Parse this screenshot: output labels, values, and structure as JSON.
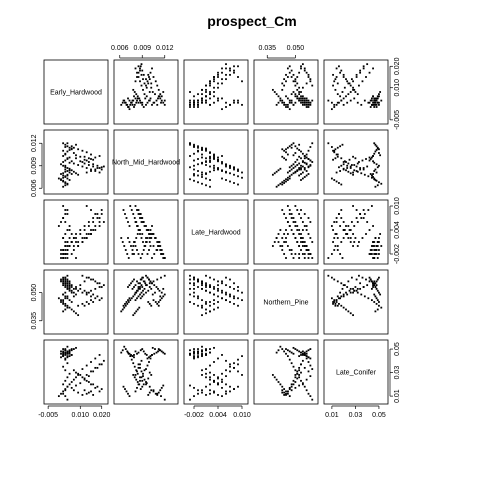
{
  "chart_data": {
    "type": "scatter",
    "title": "prospect_Cm",
    "variables": [
      {
        "name": "Early_Hardwood",
        "range": [
          -0.006,
          0.022
        ],
        "ticks": [
          "-0.005",
          "0.010",
          "0.020"
        ],
        "tick_values": [
          -0.005,
          0.01,
          0.02
        ]
      },
      {
        "name": "North_Mid_Hardwood",
        "range": [
          0.0055,
          0.0135
        ],
        "ticks": [
          "0.006",
          "0.009",
          "0.012"
        ],
        "tick_values": [
          0.006,
          0.009,
          0.012
        ]
      },
      {
        "name": "Late_Hardwood",
        "range": [
          -0.004,
          0.011
        ],
        "ticks": [
          "-0.002",
          "0.004",
          "0.010"
        ],
        "tick_values": [
          -0.002,
          0.004,
          0.01
        ]
      },
      {
        "name": "Northern_Pine",
        "range": [
          0.029,
          0.061
        ],
        "ticks": [
          "0.035",
          "0.050"
        ],
        "tick_values": [
          0.035,
          0.05
        ]
      },
      {
        "name": "Late_Conifer",
        "range": [
          0.005,
          0.056
        ],
        "ticks": [
          "0.01",
          "0.03",
          "0.05"
        ],
        "tick_values": [
          0.01,
          0.03,
          0.05
        ]
      }
    ],
    "top_axis_panels": [
      1,
      3
    ],
    "bottom_axis_panels": [
      0,
      2,
      4
    ],
    "left_axis_panels": [
      1,
      3
    ],
    "right_axis_panels": [
      0,
      2,
      4
    ],
    "points": [
      [
        0.004,
        0.012,
        -0.003,
        0.059,
        0.007
      ],
      [
        0.003,
        0.0115,
        -0.002,
        0.058,
        0.01
      ],
      [
        0.002,
        0.011,
        -0.001,
        0.057,
        0.012
      ],
      [
        0.003,
        0.0105,
        0.0,
        0.056,
        0.015
      ],
      [
        0.004,
        0.01,
        0.001,
        0.055,
        0.018
      ],
      [
        0.002,
        0.0095,
        0.002,
        0.054,
        0.02
      ],
      [
        0.003,
        0.009,
        0.003,
        0.053,
        0.023
      ],
      [
        0.004,
        0.0087,
        0.004,
        0.052,
        0.026
      ],
      [
        0.005,
        0.0084,
        0.005,
        0.051,
        0.029
      ],
      [
        0.003,
        0.0082,
        0.006,
        0.05,
        0.032
      ],
      [
        0.002,
        0.008,
        0.007,
        0.049,
        0.035
      ],
      [
        0.004,
        0.0078,
        0.008,
        0.048,
        0.038
      ],
      [
        0.003,
        0.0076,
        0.009,
        0.047,
        0.041
      ],
      [
        0.002,
        0.0074,
        0.01,
        0.046,
        0.044
      ],
      [
        0.001,
        0.0072,
        -0.003,
        0.045,
        0.046
      ],
      [
        0.002,
        0.007,
        -0.002,
        0.044,
        0.048
      ],
      [
        0.003,
        0.0068,
        -0.001,
        0.043,
        0.05
      ],
      [
        0.004,
        0.0066,
        0.0,
        0.042,
        0.052
      ],
      [
        0.003,
        0.0064,
        0.001,
        0.041,
        0.049
      ],
      [
        0.002,
        0.0062,
        0.002,
        0.04,
        0.047
      ],
      [
        0.003,
        0.0085,
        -0.002,
        0.055,
        0.047
      ],
      [
        0.004,
        0.0083,
        -0.001,
        0.056,
        0.046
      ],
      [
        0.005,
        0.0081,
        0.0,
        0.054,
        0.048
      ],
      [
        0.006,
        0.0079,
        0.001,
        0.053,
        0.045
      ],
      [
        0.004,
        0.0077,
        -0.002,
        0.052,
        0.044
      ],
      [
        0.003,
        0.0088,
        -0.003,
        0.057,
        0.049
      ],
      [
        0.002,
        0.009,
        -0.002,
        0.058,
        0.05
      ],
      [
        0.001,
        0.0092,
        -0.001,
        0.056,
        0.048
      ],
      [
        0.005,
        0.0094,
        0.0,
        0.055,
        0.046
      ],
      [
        0.006,
        0.0096,
        0.001,
        0.054,
        0.045
      ],
      [
        0.008,
        0.01,
        0.002,
        0.053,
        0.03
      ],
      [
        0.01,
        0.0102,
        0.003,
        0.052,
        0.028
      ],
      [
        0.012,
        0.0098,
        0.004,
        0.051,
        0.025
      ],
      [
        0.014,
        0.0095,
        0.005,
        0.05,
        0.022
      ],
      [
        0.016,
        0.0092,
        0.006,
        0.049,
        0.02
      ],
      [
        0.018,
        0.009,
        0.007,
        0.048,
        0.018
      ],
      [
        0.02,
        0.0088,
        0.008,
        0.047,
        0.016
      ],
      [
        0.015,
        0.0105,
        0.003,
        0.046,
        0.014
      ],
      [
        0.013,
        0.0108,
        0.002,
        0.045,
        0.012
      ],
      [
        0.011,
        0.011,
        0.001,
        0.044,
        0.011
      ],
      [
        0.009,
        0.0112,
        0.0,
        0.043,
        0.013
      ],
      [
        0.007,
        0.0114,
        -0.001,
        0.048,
        0.015
      ],
      [
        0.006,
        0.0116,
        -0.002,
        0.05,
        0.017
      ],
      [
        0.008,
        0.0118,
        -0.003,
        0.052,
        0.019
      ],
      [
        0.01,
        0.0096,
        0.004,
        0.054,
        0.021
      ],
      [
        0.012,
        0.0093,
        0.005,
        0.056,
        0.024
      ],
      [
        0.014,
        0.0091,
        0.006,
        0.058,
        0.027
      ],
      [
        0.016,
        0.0089,
        0.007,
        0.057,
        0.031
      ],
      [
        0.018,
        0.0087,
        0.008,
        0.055,
        0.034
      ],
      [
        0.02,
        0.0085,
        0.009,
        0.053,
        0.037
      ],
      [
        0.003,
        0.0097,
        -0.002,
        0.058,
        0.042
      ],
      [
        0.004,
        0.0099,
        -0.001,
        0.057,
        0.043
      ],
      [
        0.005,
        0.0101,
        0.0,
        0.056,
        0.044
      ],
      [
        0.002,
        0.0103,
        -0.003,
        0.055,
        0.045
      ],
      [
        0.003,
        0.0106,
        -0.002,
        0.054,
        0.046
      ],
      [
        0.004,
        0.0109,
        -0.001,
        0.053,
        0.047
      ],
      [
        0.005,
        0.0111,
        0.0,
        0.052,
        0.048
      ],
      [
        0.006,
        0.0113,
        0.001,
        0.051,
        0.049
      ],
      [
        0.007,
        0.0107,
        0.002,
        0.05,
        0.05
      ],
      [
        0.008,
        0.0104,
        0.003,
        0.049,
        0.051
      ],
      [
        0.0,
        0.0073,
        0.005,
        0.047,
        0.01
      ],
      [
        0.001,
        0.0071,
        0.006,
        0.046,
        0.012
      ],
      [
        0.002,
        0.0069,
        0.007,
        0.045,
        0.014
      ],
      [
        0.003,
        0.0067,
        0.008,
        0.044,
        0.016
      ],
      [
        0.004,
        0.0065,
        0.009,
        0.043,
        0.018
      ],
      [
        0.005,
        0.0086,
        0.004,
        0.042,
        0.02
      ],
      [
        0.006,
        0.0084,
        0.003,
        0.041,
        0.022
      ],
      [
        0.007,
        0.0082,
        0.002,
        0.04,
        0.024
      ],
      [
        0.008,
        0.008,
        0.001,
        0.039,
        0.026
      ],
      [
        0.009,
        0.0078,
        0.0,
        0.038,
        0.028
      ],
      [
        0.011,
        0.0095,
        0.001,
        0.059,
        0.033
      ],
      [
        0.013,
        0.0097,
        0.002,
        0.058,
        0.036
      ],
      [
        0.015,
        0.0099,
        0.003,
        0.057,
        0.039
      ],
      [
        0.017,
        0.0101,
        0.004,
        0.056,
        0.042
      ],
      [
        0.019,
        0.0103,
        0.005,
        0.055,
        0.045
      ],
      [
        0.021,
        0.0089,
        0.006,
        0.054,
        0.04
      ],
      [
        0.019,
        0.0087,
        0.007,
        0.053,
        0.037
      ],
      [
        0.017,
        0.0085,
        0.008,
        0.052,
        0.034
      ],
      [
        0.015,
        0.0083,
        0.009,
        0.051,
        0.031
      ],
      [
        0.013,
        0.0081,
        0.01,
        0.05,
        0.028
      ],
      [
        0.002,
        0.012,
        -0.003,
        0.049,
        0.046
      ],
      [
        0.003,
        0.0118,
        -0.002,
        0.048,
        0.047
      ],
      [
        0.004,
        0.0116,
        -0.001,
        0.047,
        0.048
      ],
      [
        0.005,
        0.0114,
        0.0,
        0.046,
        0.049
      ],
      [
        0.006,
        0.0112,
        0.001,
        0.045,
        0.05
      ],
      [
        0.001,
        0.0079,
        -0.002,
        0.057,
        0.043
      ],
      [
        0.002,
        0.0077,
        -0.001,
        0.056,
        0.044
      ],
      [
        0.003,
        0.0075,
        0.0,
        0.055,
        0.045
      ],
      [
        0.004,
        0.0073,
        0.001,
        0.054,
        0.046
      ],
      [
        0.005,
        0.0071,
        0.002,
        0.053,
        0.047
      ],
      [
        0.007,
        0.0093,
        0.0,
        0.052,
        0.032
      ],
      [
        0.009,
        0.0091,
        0.001,
        0.051,
        0.029
      ],
      [
        0.011,
        0.0089,
        0.002,
        0.05,
        0.026
      ],
      [
        0.013,
        0.0087,
        0.003,
        0.049,
        0.023
      ],
      [
        0.015,
        0.0085,
        0.004,
        0.048,
        0.02
      ],
      [
        0.017,
        0.0083,
        0.005,
        0.047,
        0.017
      ],
      [
        0.019,
        0.0081,
        0.006,
        0.046,
        0.014
      ],
      [
        0.016,
        0.0098,
        0.004,
        0.045,
        0.011
      ],
      [
        0.014,
        0.01,
        0.003,
        0.044,
        0.013
      ],
      [
        0.012,
        0.0102,
        0.002,
        0.043,
        0.015
      ]
    ]
  }
}
